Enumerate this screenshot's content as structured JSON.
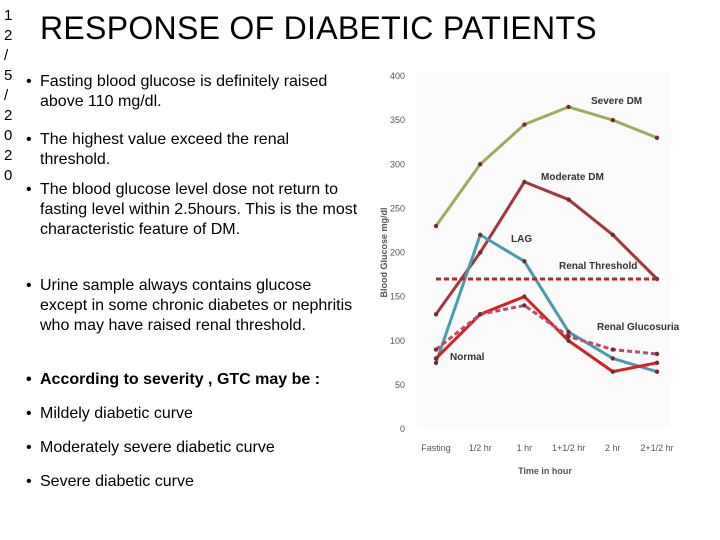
{
  "date_vertical": [
    "1",
    "2",
    "/",
    "5",
    "/",
    "2",
    "0",
    "2",
    "0"
  ],
  "title": "RESPONSE OF DIABETIC PATIENTS",
  "bullets": [
    {
      "text": "Fasting blood glucose is definitely raised above 110 mg/dl.",
      "bold": false
    },
    {
      "text": "The highest value exceed the renal threshold.",
      "bold": false
    },
    {
      "text": "The blood glucose level dose not return to fasting level within 2.5hours. This is the most characteristic feature of DM.",
      "bold": false
    },
    {
      "text": "Urine sample always contains glucose except in some chronic diabetes or nephritis who may have raised renal threshold.",
      "bold": false
    },
    {
      "text": "According to severity , GTC may be :",
      "bold": true
    },
    {
      "text": "Mildely diabetic curve",
      "bold": false
    },
    {
      "text": "Moderately severe diabetic curve",
      "bold": false
    },
    {
      "text": "Severe diabetic curve",
      "bold": false
    }
  ],
  "chart_data": {
    "type": "line",
    "title": "",
    "xlabel": "Time in hour",
    "ylabel": "Blood Glucose mg/dl",
    "categories": [
      "Fasting",
      "1/2 hr",
      "1 hr",
      "1+1/2 hr",
      "2 hr",
      "2+1/2 hr"
    ],
    "ylim": [
      0,
      400
    ],
    "yticks": [
      0,
      50,
      100,
      150,
      200,
      250,
      300,
      350,
      400
    ],
    "series": [
      {
        "name": "Severe DM",
        "color": "#9aae5c",
        "style": "solid",
        "values": [
          230,
          300,
          345,
          365,
          350,
          330
        ]
      },
      {
        "name": "Moderate DM",
        "color": "#a0393d",
        "style": "solid",
        "values": [
          130,
          200,
          280,
          260,
          220,
          170
        ]
      },
      {
        "name": "LAG",
        "color": "#4a9ab0",
        "style": "solid",
        "values": [
          75,
          220,
          190,
          110,
          80,
          65
        ]
      },
      {
        "name": "Normal",
        "color": "#d82020",
        "style": "solid",
        "values": [
          80,
          130,
          150,
          100,
          65,
          75
        ]
      },
      {
        "name": "Renal Glucosuria",
        "color": "#c04a6a",
        "style": "dashed",
        "values": [
          90,
          130,
          140,
          105,
          90,
          85
        ]
      },
      {
        "name": "Renal Threshold",
        "color": "#b02a36",
        "style": "dashed",
        "values": [
          170,
          170,
          170,
          170,
          170,
          170
        ]
      }
    ],
    "labels": [
      "Severe DM",
      "Moderate DM",
      "LAG",
      "Renal Threshold",
      "Renal Glucosuria",
      "Normal"
    ]
  }
}
